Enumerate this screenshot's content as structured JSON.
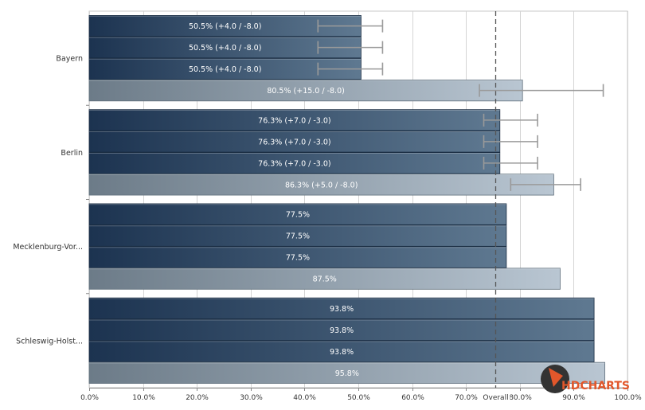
{
  "chart_data": {
    "type": "bar",
    "orientation": "horizontal",
    "categories": [
      "Bayern",
      "Berlin",
      "Mecklenburg-Vor...",
      "Schleswig-Holst..."
    ],
    "xlim": [
      0,
      100
    ],
    "x_tick_labels": [
      "0.0%",
      "10.0%",
      "20.0%",
      "30.0%",
      "40.0%",
      "50.0%",
      "60.0%",
      "70.0%",
      "80.0%",
      "90.0%",
      "100.0%"
    ],
    "grid": "vertical",
    "series": [
      {
        "style": "dark",
        "values": [
          50.5,
          76.3,
          77.5,
          93.8
        ],
        "error_plus": [
          4.0,
          7.0,
          null,
          null
        ],
        "error_minus": [
          8.0,
          3.0,
          null,
          null
        ],
        "labels": [
          "50.5% (+4.0 / -8.0)",
          "76.3% (+7.0 / -3.0)",
          "77.5%",
          "93.8%"
        ]
      },
      {
        "style": "dark",
        "values": [
          50.5,
          76.3,
          77.5,
          93.8
        ],
        "error_plus": [
          4.0,
          7.0,
          null,
          null
        ],
        "error_minus": [
          8.0,
          3.0,
          null,
          null
        ],
        "labels": [
          "50.5% (+4.0 / -8.0)",
          "76.3% (+7.0 / -3.0)",
          "77.5%",
          "93.8%"
        ]
      },
      {
        "style": "dark",
        "values": [
          50.5,
          76.3,
          77.5,
          93.8
        ],
        "error_plus": [
          4.0,
          7.0,
          null,
          null
        ],
        "error_minus": [
          8.0,
          3.0,
          null,
          null
        ],
        "labels": [
          "50.5% (+4.0 / -8.0)",
          "76.3% (+7.0 / -3.0)",
          "77.5%",
          "93.8%"
        ]
      },
      {
        "style": "light",
        "values": [
          80.5,
          86.3,
          87.5,
          95.8
        ],
        "error_plus": [
          15.0,
          5.0,
          null,
          null
        ],
        "error_minus": [
          8.0,
          8.0,
          null,
          null
        ],
        "labels": [
          "80.5% (+15.0 / -8.0)",
          "86.3% (+5.0 / -8.0)",
          "87.5%",
          "95.8%"
        ]
      }
    ],
    "reference_line": {
      "value": 75.5,
      "label": "Overall"
    }
  },
  "logo": {
    "brand_hd": "HD",
    "brand_charts": "CHARTS"
  },
  "colors": {
    "dark_bar_start": "#1c3350",
    "dark_bar_end": "#5f7991",
    "light_bar_start": "#6c7b88",
    "light_bar_end": "#b9c6d2",
    "grid": "#d4d4d4",
    "axis": "#888888",
    "plot_border": "#c8c8c8",
    "error_bar": "#9a9a9a",
    "logo_orange": "#e2572b",
    "logo_dark": "#333333"
  }
}
